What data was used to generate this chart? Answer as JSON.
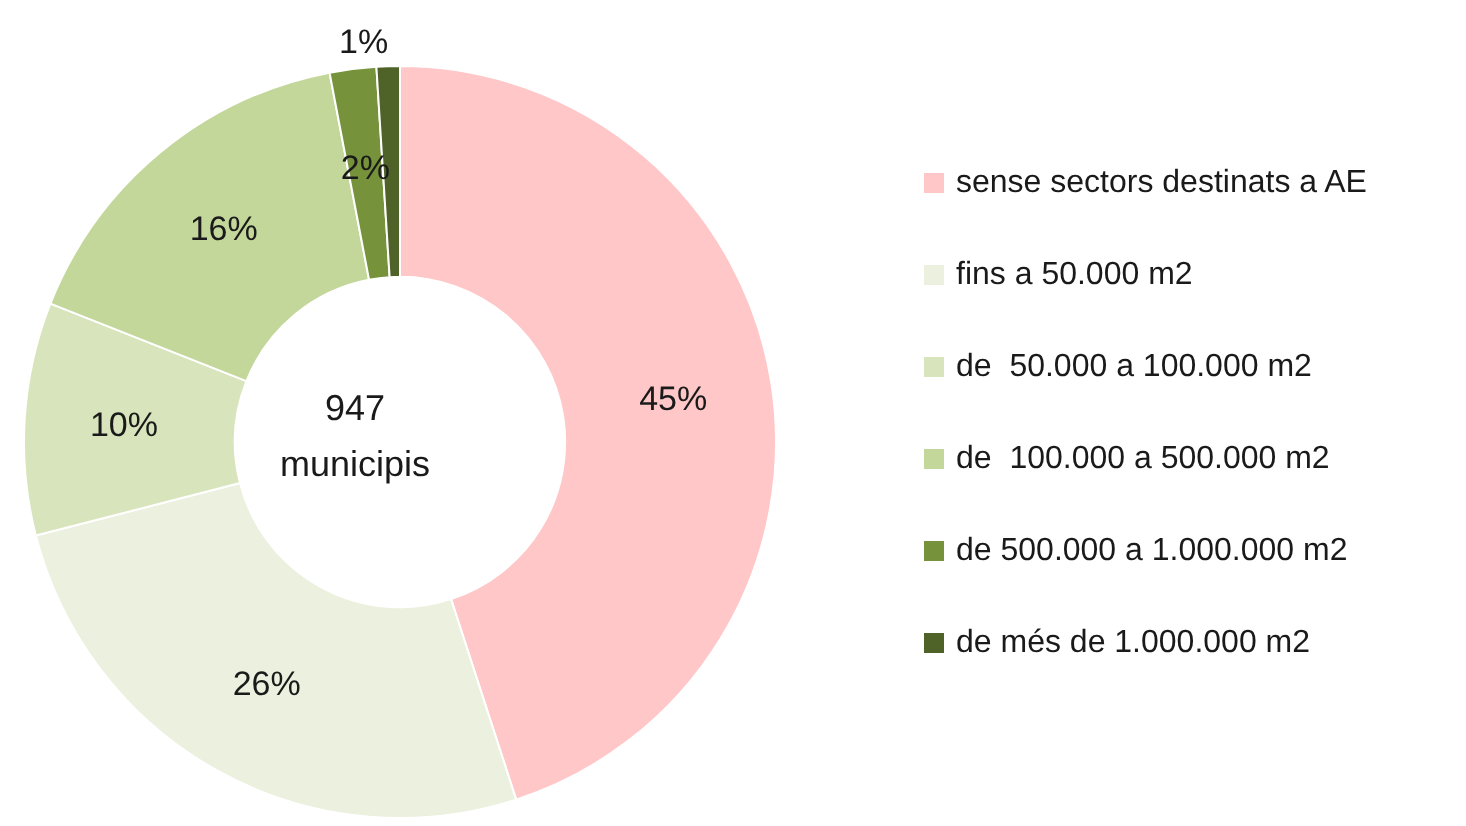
{
  "chart_data": {
    "type": "donut",
    "categories": [
      "sense sectors destinats a AE",
      "fins a 50.000 m2",
      "de  50.000 a 100.000 m2",
      "de  100.000 a 500.000 m2",
      "de 500.000 a 1.000.000 m2",
      "de més de 1.000.000 m2"
    ],
    "values": [
      45,
      26,
      10,
      16,
      2,
      1
    ],
    "value_labels": [
      "45%",
      "26%",
      "10%",
      "16%",
      "2%",
      "1%"
    ],
    "colors": [
      "#ffc7c7",
      "#ebf1de",
      "#d8e4bc",
      "#c4d79b",
      "#76933c",
      "#4f6228"
    ],
    "annotations": [
      "947\nmunicipis"
    ],
    "legend": "right"
  }
}
